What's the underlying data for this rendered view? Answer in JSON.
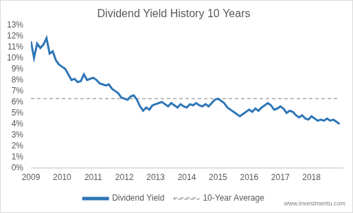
{
  "chart_data": {
    "type": "line",
    "title": "Dividend Yield History 10 Years",
    "annotation": "www.investmentu.com",
    "x": [
      2009.0,
      2009.1,
      2009.2,
      2009.3,
      2009.4,
      2009.5,
      2009.6,
      2009.7,
      2009.8,
      2009.9,
      2010.0,
      2010.1,
      2010.2,
      2010.3,
      2010.4,
      2010.5,
      2010.6,
      2010.7,
      2010.8,
      2010.9,
      2011.0,
      2011.1,
      2011.2,
      2011.3,
      2011.4,
      2011.5,
      2011.6,
      2011.7,
      2011.8,
      2011.9,
      2012.0,
      2012.1,
      2012.2,
      2012.3,
      2012.4,
      2012.5,
      2012.6,
      2012.7,
      2012.8,
      2012.9,
      2013.0,
      2013.1,
      2013.2,
      2013.3,
      2013.4,
      2013.5,
      2013.6,
      2013.7,
      2013.8,
      2013.9,
      2014.0,
      2014.1,
      2014.2,
      2014.3,
      2014.4,
      2014.5,
      2014.6,
      2014.7,
      2014.8,
      2014.9,
      2015.0,
      2015.1,
      2015.2,
      2015.3,
      2015.4,
      2015.5,
      2015.6,
      2015.7,
      2015.8,
      2015.9,
      2016.0,
      2016.1,
      2016.2,
      2016.3,
      2016.4,
      2016.5,
      2016.6,
      2016.7,
      2016.8,
      2016.9,
      2017.0,
      2017.1,
      2017.2,
      2017.3,
      2017.4,
      2017.5,
      2017.6,
      2017.7,
      2017.8,
      2017.9,
      2018.0,
      2018.1,
      2018.2,
      2018.3,
      2018.4,
      2018.5,
      2018.6,
      2018.7,
      2018.8,
      2018.9
    ],
    "series": [
      {
        "name": "Dividend Yield",
        "color": "#2e75b6",
        "line_style": "solid",
        "values": [
          11.5,
          10.0,
          11.3,
          10.9,
          11.2,
          11.8,
          10.4,
          10.6,
          9.8,
          9.4,
          9.2,
          9.0,
          8.5,
          8.0,
          8.1,
          7.8,
          7.9,
          8.5,
          8.0,
          8.1,
          8.2,
          8.0,
          7.7,
          7.6,
          7.5,
          7.6,
          7.2,
          7.0,
          6.8,
          6.4,
          6.3,
          6.2,
          6.5,
          6.6,
          6.2,
          5.6,
          5.2,
          5.5,
          5.3,
          5.7,
          5.8,
          5.9,
          6.0,
          5.8,
          5.6,
          5.9,
          5.7,
          5.5,
          5.8,
          5.6,
          5.5,
          5.8,
          5.7,
          5.9,
          5.7,
          5.6,
          5.8,
          5.6,
          5.9,
          6.2,
          6.3,
          6.1,
          5.9,
          5.5,
          5.3,
          5.1,
          4.9,
          4.7,
          4.9,
          5.1,
          5.3,
          5.1,
          5.4,
          5.2,
          5.5,
          5.7,
          5.9,
          5.7,
          5.3,
          5.4,
          5.6,
          5.4,
          5.0,
          5.2,
          5.1,
          4.8,
          4.6,
          4.8,
          4.5,
          4.4,
          4.7,
          4.5,
          4.3,
          4.4,
          4.3,
          4.5,
          4.3,
          4.4,
          4.2,
          4.0
        ]
      },
      {
        "name": "10-Year Average",
        "color": "#a5a5a5",
        "line_style": "dashed",
        "values": [
          6.3,
          6.3,
          6.3,
          6.3,
          6.3,
          6.3,
          6.3,
          6.3,
          6.3,
          6.3,
          6.3,
          6.3,
          6.3,
          6.3,
          6.3,
          6.3,
          6.3,
          6.3,
          6.3,
          6.3,
          6.3,
          6.3,
          6.3,
          6.3,
          6.3,
          6.3,
          6.3,
          6.3,
          6.3,
          6.3,
          6.3,
          6.3,
          6.3,
          6.3,
          6.3,
          6.3,
          6.3,
          6.3,
          6.3,
          6.3,
          6.3,
          6.3,
          6.3,
          6.3,
          6.3,
          6.3,
          6.3,
          6.3,
          6.3,
          6.3,
          6.3,
          6.3,
          6.3,
          6.3,
          6.3,
          6.3,
          6.3,
          6.3,
          6.3,
          6.3,
          6.3,
          6.3,
          6.3,
          6.3,
          6.3,
          6.3,
          6.3,
          6.3,
          6.3,
          6.3,
          6.3,
          6.3,
          6.3,
          6.3,
          6.3,
          6.3,
          6.3,
          6.3,
          6.3,
          6.3,
          6.3,
          6.3,
          6.3,
          6.3,
          6.3,
          6.3,
          6.3,
          6.3,
          6.3,
          6.3,
          6.3,
          6.3,
          6.3,
          6.3,
          6.3,
          6.3,
          6.3,
          6.3,
          6.3,
          6.3
        ]
      }
    ],
    "xlim": [
      2009,
      2019
    ],
    "xticks": [
      2009,
      2010,
      2011,
      2012,
      2013,
      2014,
      2015,
      2016,
      2017,
      2018
    ],
    "ylim": [
      0,
      13
    ],
    "yticks": [
      {
        "value": 0,
        "label": "0%"
      },
      {
        "value": 1,
        "label": "1%"
      },
      {
        "value": 2,
        "label": "2%"
      },
      {
        "value": 3,
        "label": "3%"
      },
      {
        "value": 4,
        "label": "4%"
      },
      {
        "value": 5,
        "label": "5%"
      },
      {
        "value": 6,
        "label": "6%"
      },
      {
        "value": 7,
        "label": "7%"
      },
      {
        "value": 8,
        "label": "8%"
      },
      {
        "value": 9,
        "label": "9%"
      },
      {
        "value": 10,
        "label": "10%"
      },
      {
        "value": 11,
        "label": "11%"
      },
      {
        "value": 12,
        "label": "12%"
      },
      {
        "value": 13,
        "label": "13%"
      }
    ],
    "grid": false,
    "legend": "bottom"
  }
}
